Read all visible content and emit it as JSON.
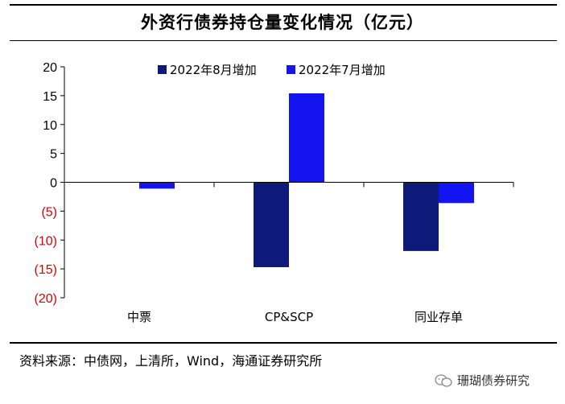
{
  "title": "外资行债券持仓量变化情况（亿元）",
  "source": "资料来源：中债网，上清所，Wind，海通证券研究所",
  "watermark": "珊瑚债券研究",
  "chart_data": {
    "type": "bar",
    "categories": [
      "中票",
      "CP&SCP",
      "同业存单"
    ],
    "series": [
      {
        "name": "2022年8月增加",
        "color": "#0d1a7a",
        "values": [
          0,
          -14.7,
          -11.9
        ]
      },
      {
        "name": "2022年7月增加",
        "color": "#1414f0",
        "values": [
          -1.1,
          15.4,
          -3.6
        ]
      }
    ],
    "ylim": [
      -20,
      20
    ],
    "yticks": [
      20,
      15,
      10,
      5,
      0,
      -5,
      -10,
      -15,
      -20
    ],
    "ytick_labels": [
      "20",
      "15",
      "10",
      "5",
      "0",
      "(5)",
      "(10)",
      "(15)",
      "(20)"
    ],
    "negative_label_color": "#e00000",
    "legend_position": "top"
  }
}
